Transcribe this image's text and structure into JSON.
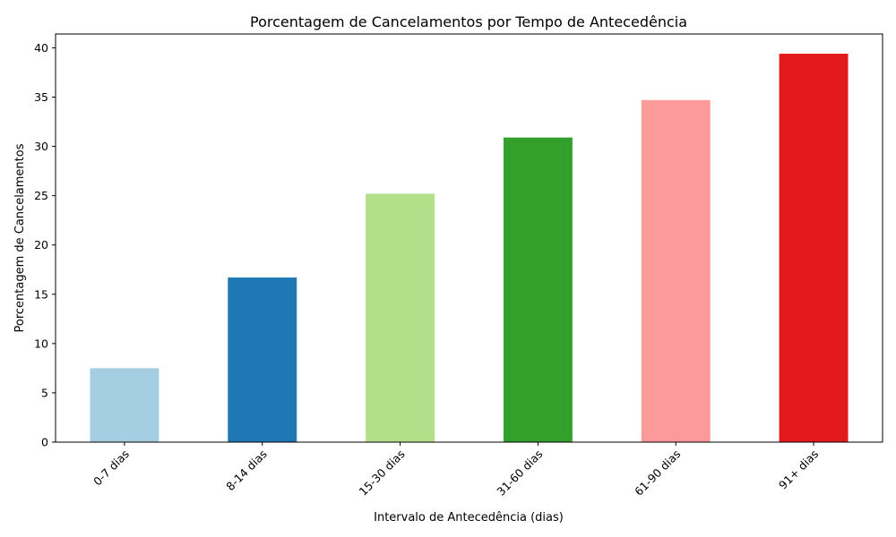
{
  "chart_data": {
    "type": "bar",
    "title": "Porcentagem de Cancelamentos por Tempo de Antecedência",
    "xlabel": "Intervalo de Antecedência (dias)",
    "ylabel": "Porcentagem de Cancelamentos",
    "categories": [
      "0-7 dias",
      "8-14 dias",
      "15-30 dias",
      "31-60 dias",
      "61-90 dias",
      "91+ dias"
    ],
    "values": [
      7.5,
      16.7,
      25.2,
      30.9,
      34.7,
      39.4
    ],
    "colors": [
      "#a6cee3",
      "#1f78b4",
      "#b2df8a",
      "#33a02c",
      "#fb9a99",
      "#e31a1c"
    ],
    "ylim": [
      0,
      41.4
    ],
    "yticks": [
      0,
      5,
      10,
      15,
      20,
      25,
      30,
      35,
      40
    ],
    "grid": false,
    "legend": "none"
  }
}
